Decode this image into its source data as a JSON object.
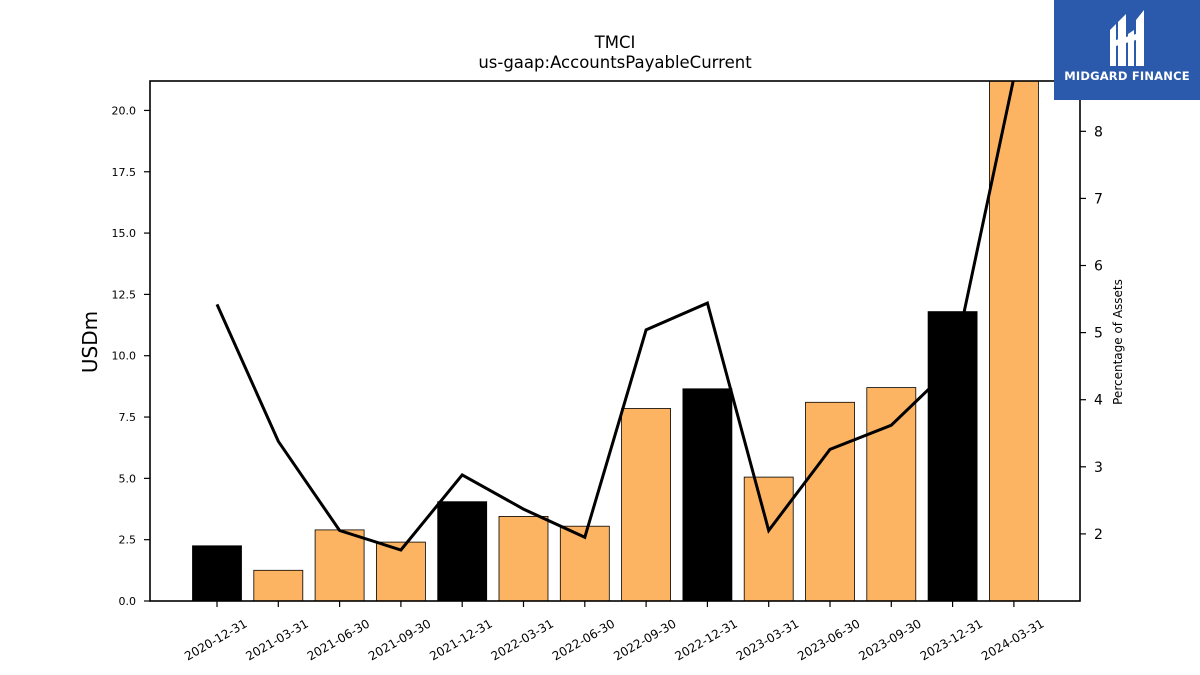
{
  "chart_data": {
    "type": "bar",
    "title": "TMCI",
    "subtitle": "us-gaap:AccountsPayableCurrent",
    "ylabel": "USDm",
    "y2label": "Percentage of Assets",
    "categories": [
      "2020-12-31",
      "2021-03-31",
      "2021-06-30",
      "2021-09-30",
      "2021-12-31",
      "2022-03-31",
      "2022-06-30",
      "2022-09-30",
      "2022-12-31",
      "2023-03-31",
      "2023-06-30",
      "2023-09-30",
      "2023-12-31",
      "2024-03-31"
    ],
    "series": [
      {
        "type": "bar",
        "values": [
          2.25,
          1.25,
          2.9,
          2.4,
          4.05,
          3.45,
          3.05,
          7.85,
          8.65,
          5.05,
          8.1,
          8.7,
          11.8,
          21.2
        ],
        "colors": [
          "#000000",
          "#fdb462",
          "#fdb462",
          "#fdb462",
          "#000000",
          "#fdb462",
          "#fdb462",
          "#fdb462",
          "#000000",
          "#fdb462",
          "#fdb462",
          "#fdb462",
          "#000000",
          "#fdb462"
        ]
      },
      {
        "type": "line",
        "axis": "right",
        "values": [
          5.42,
          3.38,
          2.05,
          1.76,
          2.88,
          2.37,
          1.95,
          5.04,
          5.44,
          2.05,
          3.26,
          3.62,
          4.5,
          8.8
        ],
        "color": "#000000"
      }
    ],
    "ylim": [
      0,
      21.2
    ],
    "y2lim": [
      1.0,
      8.75
    ],
    "yticks": [
      "0.0",
      "2.5",
      "5.0",
      "7.5",
      "10.0",
      "12.5",
      "15.0",
      "17.5",
      "20.0"
    ],
    "y2ticks": [
      "2",
      "3",
      "4",
      "5",
      "6",
      "7",
      "8"
    ],
    "grid": false,
    "legend": "none"
  },
  "logo": {
    "text": "MIDGARD FINANCE",
    "color": "#2b59ab"
  }
}
